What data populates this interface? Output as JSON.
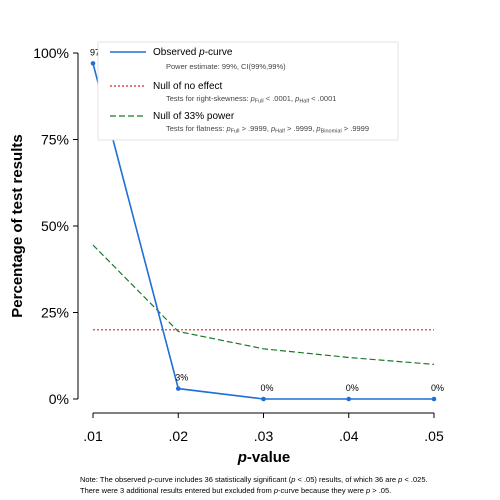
{
  "chart_data": {
    "type": "line",
    "x": [
      0.01,
      0.02,
      0.03,
      0.04,
      0.05
    ],
    "x_tick_labels": [
      ".01",
      ".02",
      ".03",
      ".04",
      ".05"
    ],
    "y_tick_values": [
      0,
      25,
      50,
      75,
      100
    ],
    "y_tick_labels": [
      "0%",
      "25%",
      "50%",
      "75%",
      "100%"
    ],
    "xlim": [
      0.01,
      0.05
    ],
    "ylim": [
      0,
      100
    ],
    "xlabel_italic": "p",
    "xlabel_rest": "-value",
    "ylabel": "Percentage of test results",
    "grid": false,
    "legend_position": "top-right",
    "series": [
      {
        "name_prefix": "Observed ",
        "name_italic": "p",
        "name_suffix": "-curve",
        "detail": "Power estimate: 99%, CI(99%,99%)",
        "color": "#1f6fd6",
        "dash": "solid",
        "values": [
          97,
          3,
          0,
          0,
          0
        ],
        "data_labels": [
          "97%",
          "3%",
          "0%",
          "0%",
          "0%"
        ],
        "markers": true
      },
      {
        "name": "Null of no effect",
        "detail_prefix": "Tests for right-skewness: ",
        "detail_p1": "p",
        "detail_sub1": "Full",
        "detail_mid": " < .0001,  ",
        "detail_p2": "p",
        "detail_sub2": "Half",
        "detail_end": " < .0001",
        "color": "#d62728",
        "dash": "dotted",
        "values": [
          20,
          20,
          20,
          20,
          20
        ]
      },
      {
        "name": "Null of 33% power",
        "detail_prefix": "Tests for flatness: ",
        "detail_p1": "p",
        "detail_sub1": "Full",
        "detail_mid1": " > .9999,  ",
        "detail_p2": "p",
        "detail_sub2": "Half",
        "detail_mid2": " > .9999,  ",
        "detail_p3": "p",
        "detail_sub3": "Binomial",
        "detail_end": " > .9999",
        "color": "#1a7a2a",
        "dash": "dashed",
        "values": [
          44.5,
          19.5,
          14.5,
          12,
          10
        ]
      }
    ]
  },
  "note": {
    "line1_a": "Note: The observed ",
    "line1_p1": "p",
    "line1_b": "-curve includes 36 statistically significant (",
    "line1_p2": "p",
    "line1_c": " < .05) results, of which 36 are ",
    "line1_p3": "p",
    "line1_d": " < .025.",
    "line2_a": "There were 3 additional results entered but excluded from ",
    "line2_p1": "p",
    "line2_b": "-curve because they were ",
    "line2_p2": "p",
    "line2_c": " > .05."
  }
}
